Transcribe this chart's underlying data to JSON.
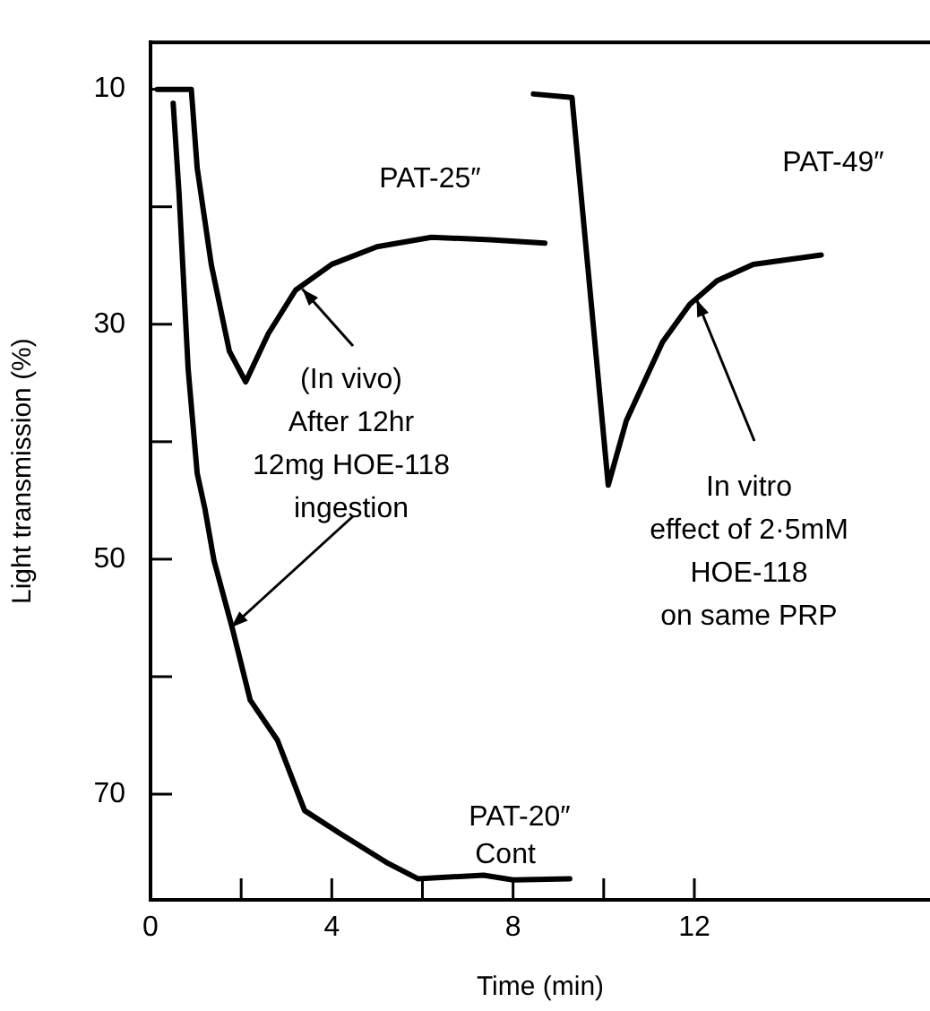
{
  "chart_data": {
    "type": "line",
    "xlabel": "Time (min)",
    "ylabel": "Light transmission (%)",
    "xlim": [
      0,
      17.2
    ],
    "ylim": [
      79,
      6
    ],
    "xticks": [
      0,
      {
        "value": 2,
        "label": null
      },
      4,
      {
        "value": 6,
        "label": null
      },
      8,
      {
        "value": 10,
        "label": null
      },
      12
    ],
    "yticks": [
      10,
      {
        "value": 20,
        "label": null
      },
      30,
      {
        "value": 40,
        "label": null
      },
      50,
      {
        "value": 60,
        "label": null
      },
      70
    ],
    "grid": false,
    "legend": false,
    "line_style": "solid",
    "series": [
      {
        "name": "PAT-25″",
        "color": "#000000",
        "x": [
          0.15,
          0.9,
          1.03,
          1.34,
          1.74,
          2.1,
          2.6,
          3.2,
          4,
          5,
          6.2,
          7.5,
          8.7
        ],
        "values": [
          10,
          10,
          16.7,
          24.9,
          32.3,
          34.9,
          30.8,
          27.1,
          24.9,
          23.4,
          22.6,
          22.8,
          23.1
        ]
      },
      {
        "name": "PAT-49″",
        "color": "#000000",
        "x": [
          8.45,
          9.3,
          10.1,
          10.5,
          11.3,
          11.9,
          12.5,
          13.3,
          14.8
        ],
        "values": [
          10.4,
          10.7,
          43.7,
          38.2,
          31.5,
          28.3,
          26.3,
          24.9,
          24.1
        ]
      },
      {
        "name": "PAT-20″",
        "color": "#000000",
        "x": [
          0.5,
          0.63,
          0.83,
          1.03,
          1.2,
          1.4,
          1.8,
          2.2,
          2.8,
          3.4,
          4.2,
          5.2,
          5.9,
          7.35,
          8,
          9.25
        ],
        "values": [
          11.2,
          18.9,
          33.8,
          42.7,
          45.7,
          50.1,
          55.8,
          62,
          65.4,
          71.4,
          73.4,
          75.8,
          77.2,
          76.9,
          77.3,
          77.2
        ]
      }
    ],
    "annotations": [
      "Cont",
      {
        "text": "(In vivo)\nAfter 12hr\n12mg HOE-118\ningestion",
        "x": 3.35,
        "y": 27
      },
      {
        "text": "In vitro\neffect of 2·5mM\nHOE-118\non same PRP",
        "x": 12.05,
        "y": 27.9
      }
    ]
  }
}
